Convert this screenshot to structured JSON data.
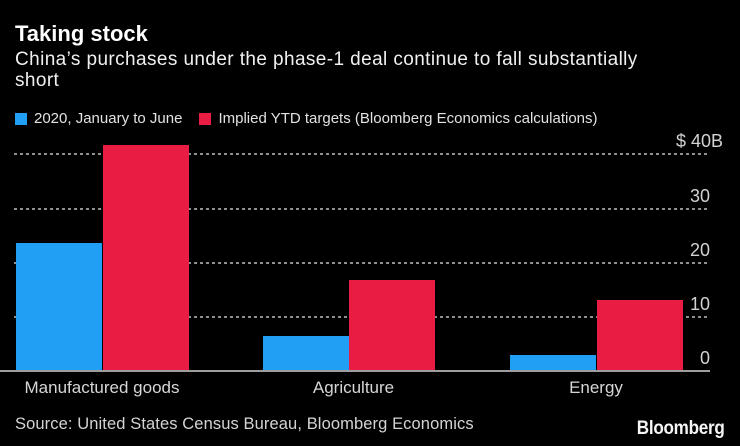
{
  "header": {
    "title": "Taking stock",
    "subtitle_line1": "China’s purchases under the phase-1 deal continue to fall substantially",
    "subtitle_line2": "short"
  },
  "chart_data": {
    "type": "bar",
    "title": "Taking stock",
    "subtitle": "China’s purchases under the phase-1 deal continue to fall substantially short",
    "unit": "$B",
    "categories": [
      "Manufactured goods",
      "Agriculture",
      "Energy"
    ],
    "series": [
      {
        "name": "2020, January to June",
        "color": "#219ff4",
        "values": [
          23.5,
          6.3,
          2.8
        ]
      },
      {
        "name": "Implied YTD targets (Bloomberg Economics calculations)",
        "color": "#e91d43",
        "values": [
          41.5,
          16.7,
          13
        ]
      }
    ],
    "yticks": [
      {
        "value": 40,
        "label": "$ 40B"
      },
      {
        "value": 30,
        "label": "30"
      },
      {
        "value": 20,
        "label": "20"
      },
      {
        "value": 10,
        "label": "10"
      },
      {
        "value": 0,
        "label": "0"
      }
    ],
    "ylim": [
      0,
      42.5
    ],
    "grid": "horizontal-dotted",
    "legend_position": "top-left"
  },
  "footer": {
    "source": "Source: United States Census Bureau, Bloomberg Economics",
    "brand": "Bloomberg"
  },
  "colors": {
    "background": "#000000",
    "actual_blue": "#219ff4",
    "target_red": "#e91d43",
    "grid": "#8f8f8f",
    "axis_line": "#9e9e9e"
  }
}
